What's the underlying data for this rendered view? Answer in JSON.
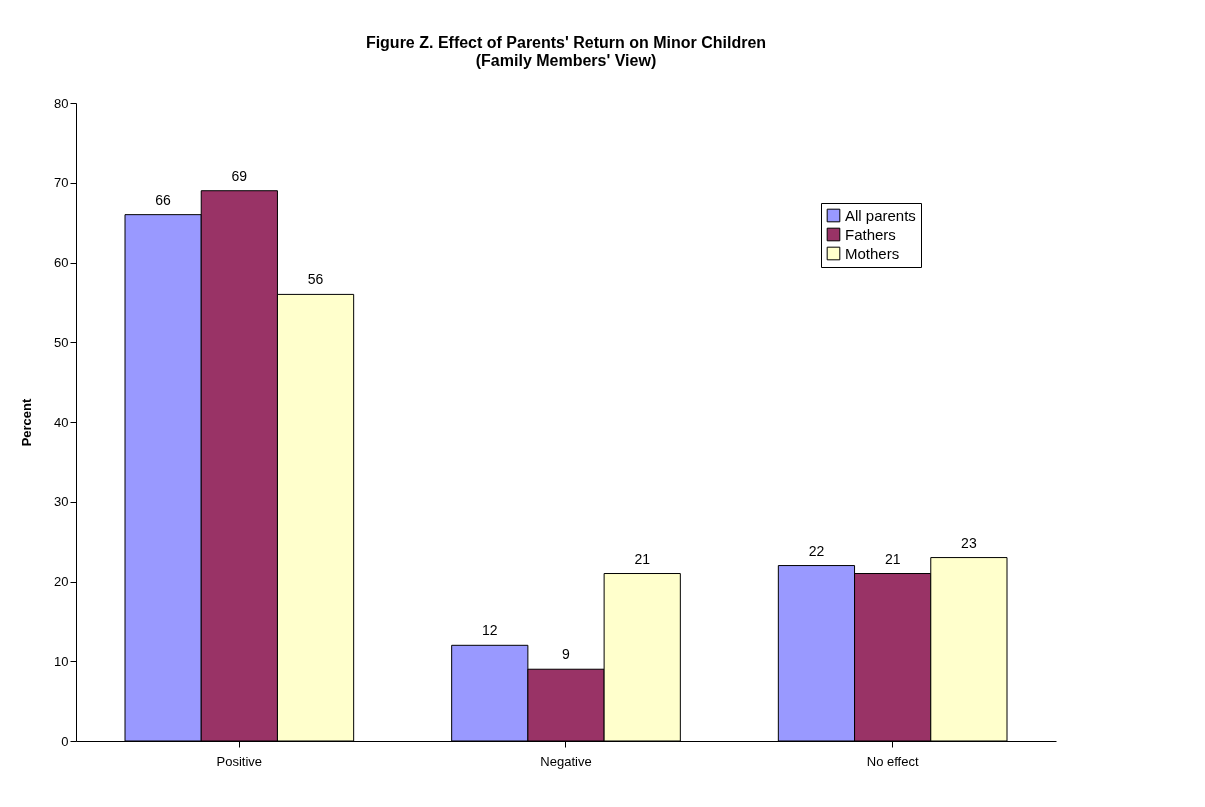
{
  "chart_data": {
    "type": "bar",
    "title": [
      "Figure Z. Effect of Parents' Return on Minor Children",
      "(Family Members' View)"
    ],
    "ylabel": "Percent",
    "categories": [
      "Positive",
      "Negative",
      "No effect"
    ],
    "series": [
      {
        "name": "All parents",
        "color": "#9999ff",
        "values": [
          66,
          12,
          22
        ]
      },
      {
        "name": "Fathers",
        "color": "#993366",
        "values": [
          69,
          9,
          21
        ]
      },
      {
        "name": "Mothers",
        "color": "#ffffcc",
        "values": [
          56,
          21,
          23
        ]
      }
    ],
    "ylim": [
      0,
      80
    ],
    "yticks": [
      0,
      10,
      20,
      30,
      40,
      50,
      60,
      70,
      80
    ],
    "grid": false,
    "legend": "top right",
    "data_labels": true
  }
}
